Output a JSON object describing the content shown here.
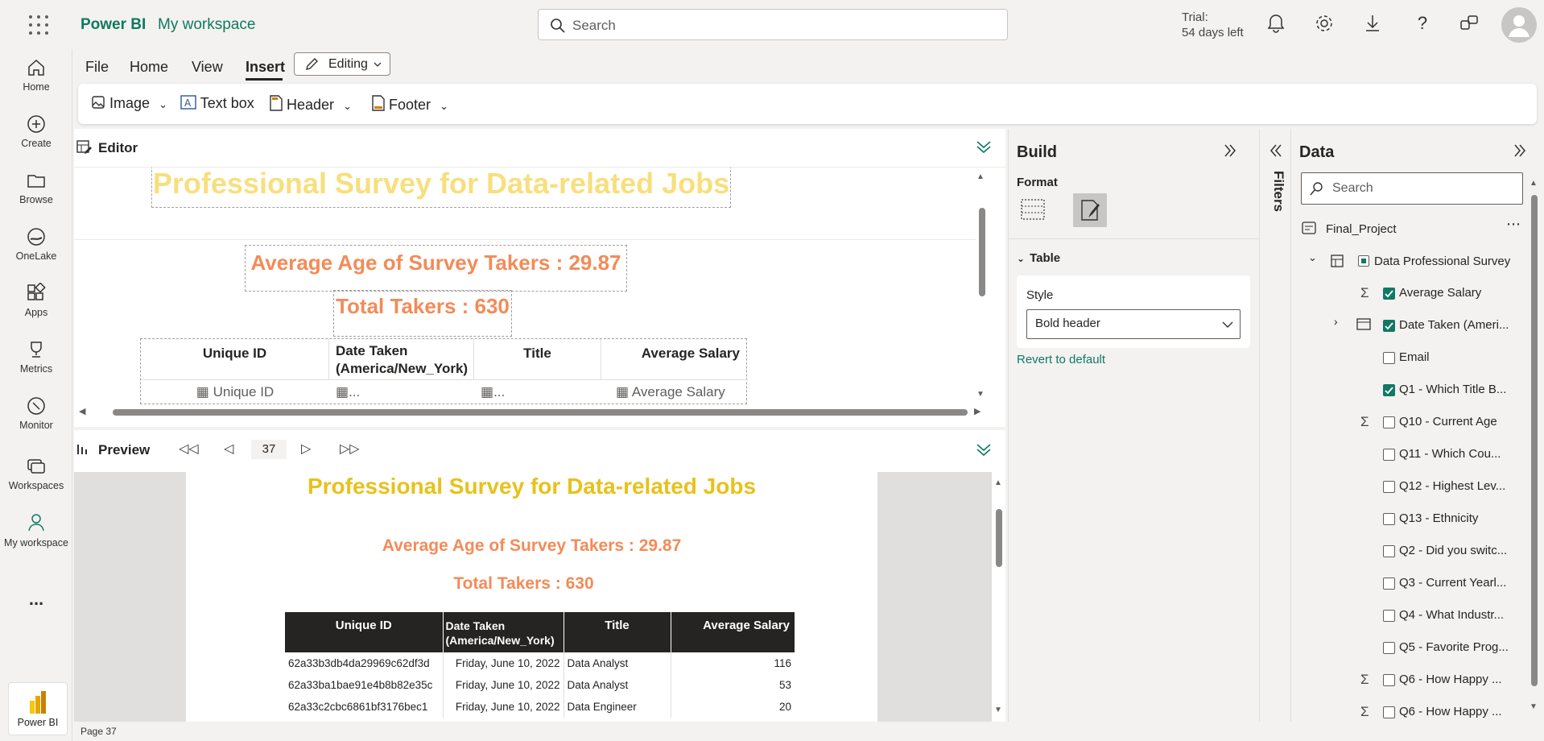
{
  "app": {
    "brand": "Power BI",
    "workspace": "My workspace"
  },
  "search": {
    "placeholder": "Search"
  },
  "trial": {
    "line1": "Trial:",
    "line2": "54 days left"
  },
  "rail": {
    "items": [
      {
        "label": "Home"
      },
      {
        "label": "Create"
      },
      {
        "label": "Browse"
      },
      {
        "label": "OneLake"
      },
      {
        "label": "Apps"
      },
      {
        "label": "Metrics"
      },
      {
        "label": "Monitor"
      },
      {
        "label": "Workspaces"
      },
      {
        "label": "My workspace"
      }
    ],
    "more": "...",
    "product": "Power BI"
  },
  "menu": {
    "file": "File",
    "home": "Home",
    "view": "View",
    "insert": "Insert",
    "editing": "Editing"
  },
  "ribbon": {
    "image": "Image",
    "textbox": "Text box",
    "header": "Header",
    "footer": "Footer"
  },
  "editor": {
    "label": "Editor",
    "title": "Professional Survey for Data-related Jobs",
    "avg_age": "Average Age of Survey Takers : 29.87",
    "total": "Total Takers : 630",
    "table_headers": [
      "Unique ID",
      "Date Taken (America/New_York)",
      "Title",
      "Average Salary"
    ],
    "table_placeholders": [
      "Unique ID",
      "...",
      "...",
      "Average Salary"
    ]
  },
  "preview": {
    "label": "Preview",
    "page": "37",
    "title": "Professional Survey for Data-related Jobs",
    "avg_age": "Average Age of Survey Takers : 29.87",
    "total": "Total Takers : 630",
    "headers": [
      "Unique ID",
      "Date Taken (America/New_York)",
      "Title",
      "Average Salary"
    ],
    "rows": [
      [
        "62a33b3db4da29969c62df3d",
        "Friday, June 10, 2022",
        "Data Analyst",
        "116"
      ],
      [
        "62a33ba1bae91e4b8b82e35c",
        "Friday, June 10, 2022",
        "Data Analyst",
        "53"
      ],
      [
        "62a33c2cbc6861bf3176bec1",
        "Friday, June 10, 2022",
        "Data Engineer",
        "20"
      ]
    ]
  },
  "build": {
    "title": "Build",
    "format": "Format",
    "section": "Table",
    "style_label": "Style",
    "style_value": "Bold header",
    "revert": "Revert to default"
  },
  "filters": {
    "label": "Filters"
  },
  "data": {
    "title": "Data",
    "search_placeholder": "Search",
    "model": "Final_Project",
    "table": "Data Professional Survey",
    "fields": [
      {
        "name": "Average Salary",
        "checked": true,
        "sigma": true
      },
      {
        "name": "Date Taken (Ameri...",
        "checked": true,
        "sigma": false
      },
      {
        "name": "Email",
        "checked": false,
        "sigma": false
      },
      {
        "name": "Q1 - Which Title B...",
        "checked": true,
        "sigma": false
      },
      {
        "name": "Q10 - Current Age",
        "checked": false,
        "sigma": true
      },
      {
        "name": "Q11 - Which Cou...",
        "checked": false,
        "sigma": false
      },
      {
        "name": "Q12 - Highest Lev...",
        "checked": false,
        "sigma": false
      },
      {
        "name": "Q13 - Ethnicity",
        "checked": false,
        "sigma": false
      },
      {
        "name": "Q2 - Did you switc...",
        "checked": false,
        "sigma": false
      },
      {
        "name": "Q3 - Current Yearl...",
        "checked": false,
        "sigma": false
      },
      {
        "name": "Q4 - What Industr...",
        "checked": false,
        "sigma": false
      },
      {
        "name": "Q5 - Favorite Prog...",
        "checked": false,
        "sigma": false
      },
      {
        "name": "Q6 - How Happy ...",
        "checked": false,
        "sigma": true
      },
      {
        "name": "Q6 - How Happy ...",
        "checked": false,
        "sigma": true
      }
    ]
  },
  "status": {
    "page": "Page 37"
  },
  "colors": {
    "accent": "#117865",
    "title_yellow": "#f7df7d",
    "preview_yellow": "#e8c11c",
    "orange": "#f38b58"
  }
}
